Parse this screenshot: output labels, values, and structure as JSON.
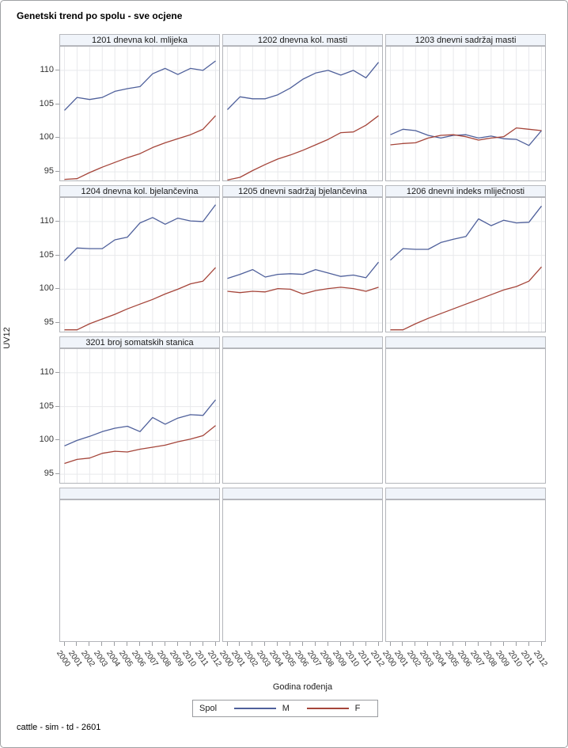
{
  "title": "Genetski trend po spolu - sve ocjene",
  "footnote": "cattle - sim - td - 2601",
  "axes": {
    "x_label": "Godina rođenja",
    "y_label": "UV12",
    "y_ticks": [
      95,
      100,
      105,
      110
    ],
    "ylim": [
      93.5,
      113.5
    ],
    "years": [
      "2000",
      "2001",
      "2002",
      "2003",
      "2004",
      "2005",
      "2006",
      "2007",
      "2008",
      "2009",
      "2010",
      "2011",
      "2012"
    ]
  },
  "legend": {
    "title": "Spol",
    "entries": [
      {
        "label": "M",
        "color": "#4f609b"
      },
      {
        "label": "F",
        "color": "#a5453a"
      }
    ]
  },
  "colors": {
    "male_line": "#4f609b",
    "female_line": "#a5453a",
    "gridline": "#e8e9ec",
    "header_bg": "#f0f4fa",
    "panel_border": "#b3b5ba"
  },
  "chart_data": {
    "type": "line",
    "x": [
      2000,
      2001,
      2002,
      2003,
      2004,
      2005,
      2006,
      2007,
      2008,
      2009,
      2010,
      2011,
      2012
    ],
    "xlabel": "Godina rođenja",
    "ylabel": "UV12",
    "ylim": [
      93.5,
      113.5
    ],
    "y_ticks": [
      95,
      100,
      105,
      110
    ],
    "grid": true,
    "legend_position": "bottom",
    "panels": [
      {
        "label": "1201 dnevna kol. mlijeka",
        "series": [
          {
            "name": "M",
            "values": [
              104.1,
              106.0,
              105.7,
              106.0,
              106.9,
              107.3,
              107.6,
              109.5,
              110.3,
              109.4,
              110.3,
              110.0,
              111.4
            ]
          },
          {
            "name": "F",
            "values": [
              93.9,
              94.0,
              94.9,
              95.7,
              96.4,
              97.1,
              97.7,
              98.6,
              99.3,
              99.9,
              100.5,
              101.3,
              103.3
            ]
          }
        ]
      },
      {
        "label": "1202 dnevna kol. masti",
        "series": [
          {
            "name": "M",
            "values": [
              104.2,
              106.1,
              105.8,
              105.8,
              106.4,
              107.4,
              108.7,
              109.6,
              110.0,
              109.3,
              110.0,
              108.9,
              111.2
            ]
          },
          {
            "name": "F",
            "values": [
              93.8,
              94.2,
              95.2,
              96.1,
              96.9,
              97.5,
              98.2,
              99.0,
              99.8,
              100.8,
              100.9,
              101.9,
              103.3
            ]
          }
        ]
      },
      {
        "label": "1203 dnevni sadržaj masti",
        "series": [
          {
            "name": "M",
            "values": [
              100.5,
              101.3,
              101.1,
              100.4,
              100.0,
              100.4,
              100.5,
              100.0,
              100.3,
              99.9,
              99.8,
              98.9,
              101.1
            ]
          },
          {
            "name": "F",
            "values": [
              99.0,
              99.2,
              99.3,
              100.0,
              100.4,
              100.5,
              100.2,
              99.7,
              100.0,
              100.2,
              101.5,
              101.3,
              101.1
            ]
          }
        ]
      },
      {
        "label": "1204 dnevna kol. bjelančevina",
        "series": [
          {
            "name": "M",
            "values": [
              104.2,
              106.1,
              106.0,
              106.0,
              107.3,
              107.7,
              109.8,
              110.6,
              109.6,
              110.5,
              110.1,
              110.0,
              112.5
            ]
          },
          {
            "name": "F",
            "values": [
              94.0,
              94.0,
              94.9,
              95.6,
              96.3,
              97.1,
              97.8,
              98.5,
              99.3,
              100.0,
              100.8,
              101.2,
              103.2
            ]
          }
        ]
      },
      {
        "label": "1205 dnevni sadržaj bjelančevina",
        "series": [
          {
            "name": "M",
            "values": [
              101.6,
              102.2,
              102.9,
              101.8,
              102.2,
              102.3,
              102.2,
              102.9,
              102.4,
              101.9,
              102.1,
              101.7,
              104.0
            ]
          },
          {
            "name": "F",
            "values": [
              99.7,
              99.5,
              99.7,
              99.6,
              100.1,
              100.0,
              99.3,
              99.8,
              100.1,
              100.3,
              100.1,
              99.7,
              100.3
            ]
          }
        ]
      },
      {
        "label": "1206 dnevni indeks mliječnosti",
        "series": [
          {
            "name": "M",
            "values": [
              104.3,
              106.0,
              105.9,
              105.9,
              106.9,
              107.4,
              107.8,
              110.4,
              109.4,
              110.2,
              109.8,
              109.9,
              112.3
            ]
          },
          {
            "name": "F",
            "values": [
              94.0,
              94.0,
              94.9,
              95.7,
              96.4,
              97.1,
              97.8,
              98.5,
              99.2,
              99.9,
              100.4,
              101.2,
              103.3
            ]
          }
        ]
      },
      {
        "label": "3201 broj somatskih stanica",
        "series": [
          {
            "name": "M",
            "values": [
              99.2,
              100.0,
              100.6,
              101.3,
              101.8,
              102.1,
              101.3,
              103.4,
              102.4,
              103.3,
              103.8,
              103.7,
              106.0
            ]
          },
          {
            "name": "F",
            "values": [
              96.6,
              97.2,
              97.4,
              98.1,
              98.4,
              98.3,
              98.7,
              99.0,
              99.3,
              99.8,
              100.2,
              100.7,
              102.2
            ]
          }
        ]
      }
    ]
  }
}
